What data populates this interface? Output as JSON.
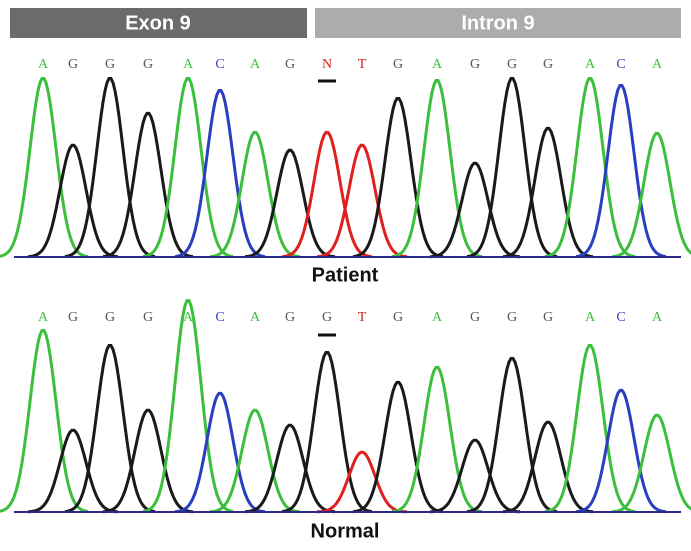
{
  "header": {
    "exon": "Exon 9",
    "intron": "Intron 9"
  },
  "panels": [
    {
      "label": "Patient",
      "bases": [
        "A",
        "G",
        "G",
        "G",
        "A",
        "C",
        "A",
        "G",
        "N",
        "T",
        "G",
        "A",
        "G",
        "G",
        "G",
        "A",
        "C",
        "A"
      ]
    },
    {
      "label": "Normal",
      "bases": [
        "A",
        "G",
        "G",
        "G",
        "A",
        "C",
        "A",
        "G",
        "G",
        "T",
        "G",
        "A",
        "G",
        "G",
        "G",
        "A",
        "C",
        "A"
      ]
    }
  ]
}
